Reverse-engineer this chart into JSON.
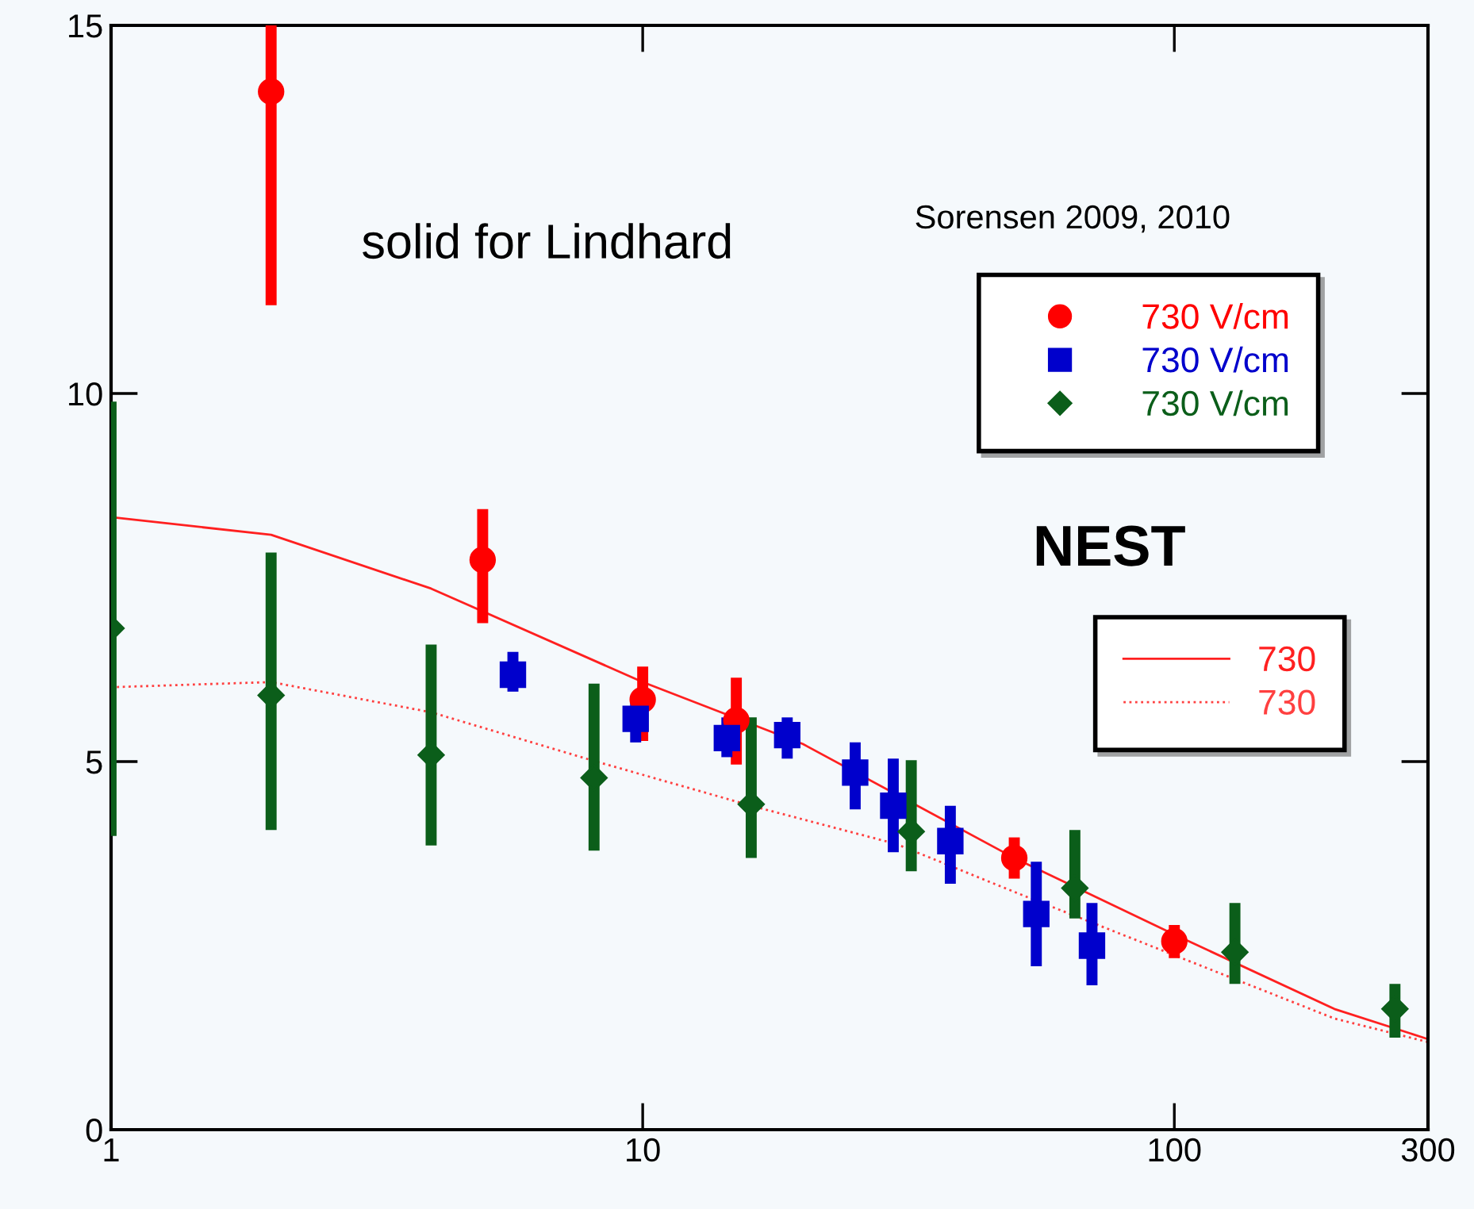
{
  "chart_data": {
    "type": "scatter",
    "log": "x",
    "xlim": [
      1,
      300
    ],
    "ylim": [
      0,
      15
    ],
    "xticks": [
      1,
      10,
      100,
      300
    ],
    "yticks": [
      0,
      5,
      10,
      15
    ],
    "grid": false,
    "legend": "right",
    "annotations": [
      "solid for Lindhard",
      "Sorensen 2009, 2010",
      "NEST"
    ],
    "series": [
      {
        "name": "730 V/cm",
        "marker": "circle",
        "color": "#ff0000",
        "x": [
          2,
          5,
          10,
          15,
          50,
          100
        ],
        "values": [
          14.1,
          7.74,
          5.84,
          5.56,
          3.69,
          2.56
        ],
        "errors": [
          [
            11.2,
            15.0
          ],
          [
            6.88,
            8.43
          ],
          [
            5.28,
            6.29
          ],
          [
            4.96,
            6.14
          ],
          [
            3.41,
            3.97
          ],
          [
            2.33,
            2.78
          ]
        ]
      },
      {
        "name": "730 V/cm",
        "marker": "square",
        "color": "#0000cc",
        "x": [
          5.7,
          9.7,
          14.4,
          18.7,
          25.1,
          29.6,
          37.9,
          55,
          70
        ],
        "values": [
          6.18,
          5.58,
          5.32,
          5.36,
          4.85,
          4.4,
          3.92,
          2.93,
          2.5
        ],
        "errors": [
          [
            5.95,
            6.49
          ],
          [
            5.26,
            5.82
          ],
          [
            5.06,
            5.6
          ],
          [
            5.04,
            5.6
          ],
          [
            4.35,
            5.26
          ],
          [
            3.77,
            5.04
          ],
          [
            3.34,
            4.4
          ],
          [
            2.22,
            3.64
          ],
          [
            1.96,
            3.08
          ]
        ]
      },
      {
        "name": "730 V/cm",
        "marker": "diamond",
        "color": "#0b5e1a",
        "x": [
          1,
          2,
          4,
          8.1,
          16,
          32,
          65,
          130,
          260
        ],
        "values": [
          6.81,
          5.9,
          5.09,
          4.78,
          4.42,
          4.05,
          3.28,
          2.41,
          1.64
        ],
        "errors": [
          [
            3.99,
            9.89
          ],
          [
            4.07,
            7.84
          ],
          [
            3.86,
            6.59
          ],
          [
            3.79,
            6.06
          ],
          [
            3.69,
            5.6
          ],
          [
            3.51,
            5.02
          ],
          [
            2.87,
            4.07
          ],
          [
            1.98,
            3.08
          ],
          [
            1.25,
            1.98
          ]
        ]
      },
      {
        "name": "730",
        "type": "line",
        "line_style": "solid",
        "color": "#ff2020",
        "x": [
          1,
          2,
          4,
          10,
          20,
          50,
          100,
          200,
          300
        ],
        "values": [
          8.32,
          8.08,
          7.35,
          6.08,
          5.24,
          3.69,
          2.65,
          1.64,
          1.23
        ]
      },
      {
        "name": "730",
        "type": "line",
        "line_style": "dotted",
        "color": "#ff4040",
        "x": [
          1,
          2,
          4,
          8,
          16,
          30,
          50,
          100,
          200,
          300
        ],
        "values": [
          6.01,
          6.08,
          5.67,
          5.02,
          4.4,
          3.88,
          3.23,
          2.37,
          1.51,
          1.19
        ]
      }
    ]
  }
}
